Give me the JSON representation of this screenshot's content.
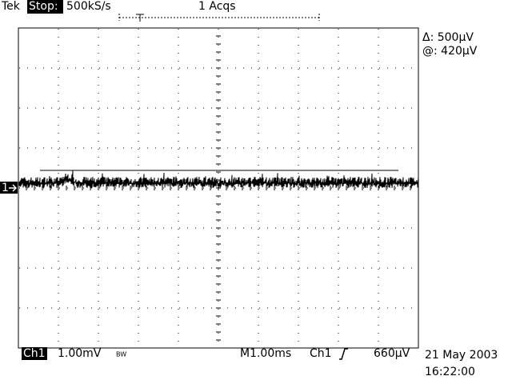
{
  "header": {
    "brand": "Tek",
    "state": "Stop:",
    "sample_rate": "500kS/s",
    "acquisitions": "1 Acqs"
  },
  "cursor_readout": {
    "delta": "Δ: 500µV",
    "at": "@: 420µV"
  },
  "channel_marker": "1",
  "footer": {
    "channel": "Ch1",
    "scale": "1.00mV",
    "bandwidth": "BW",
    "timebase": "M1.00ms",
    "trigger_source": "Ch1",
    "trigger_level": "660µV",
    "date": "21 May 2003",
    "time": "16:22:00"
  }
}
